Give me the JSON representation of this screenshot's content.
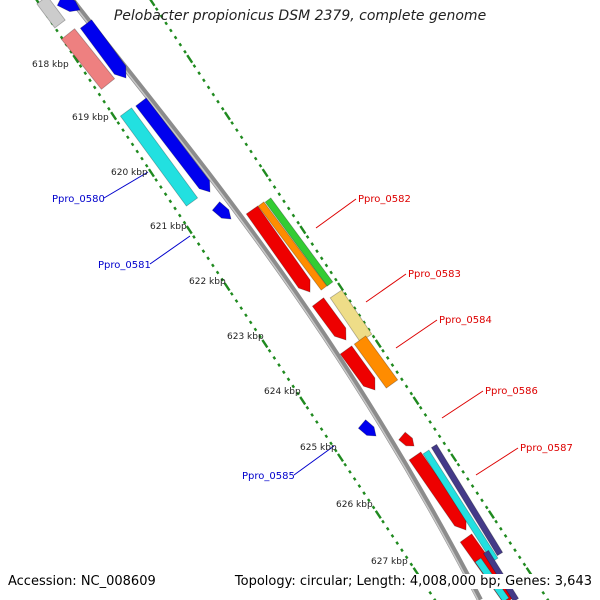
{
  "map": {
    "title": "Pelobacter propionicus DSM 2379, complete genome",
    "accession": "Accession: NC_008609",
    "summary": "Topology: circular; Length: 4,008,000 bp; Genes: 3,643",
    "colors": {
      "backbone": "#8c8c8c",
      "ticks": "#1f8a1f",
      "red": "#ee0000",
      "blue": "#0000ee",
      "cyan": "#22e0e0",
      "salmon": "#ee8080",
      "grey": "#cccccc",
      "green": "#33cc33",
      "orange": "#ff8c00",
      "khaki": "#eedd88",
      "navy": "#443a88",
      "label_forward": "#dd0000",
      "label_reverse": "#0000cc"
    },
    "kbp_ticks": [
      "618 kbp",
      "619 kbp",
      "620 kbp",
      "621 kbp",
      "622 kbp",
      "623 kbp",
      "624 kbp",
      "625 kbp",
      "626 kbp",
      "627 kbp"
    ],
    "gene_labels": [
      {
        "text": "Ppro_0580",
        "strand": "reverse"
      },
      {
        "text": "Ppro_0581",
        "strand": "reverse"
      },
      {
        "text": "Ppro_0582",
        "strand": "forward"
      },
      {
        "text": "Ppro_0583",
        "strand": "forward"
      },
      {
        "text": "Ppro_0584",
        "strand": "forward"
      },
      {
        "text": "Ppro_0585",
        "strand": "reverse"
      },
      {
        "text": "Ppro_0586",
        "strand": "forward"
      },
      {
        "text": "Ppro_0587",
        "strand": "forward"
      }
    ]
  }
}
